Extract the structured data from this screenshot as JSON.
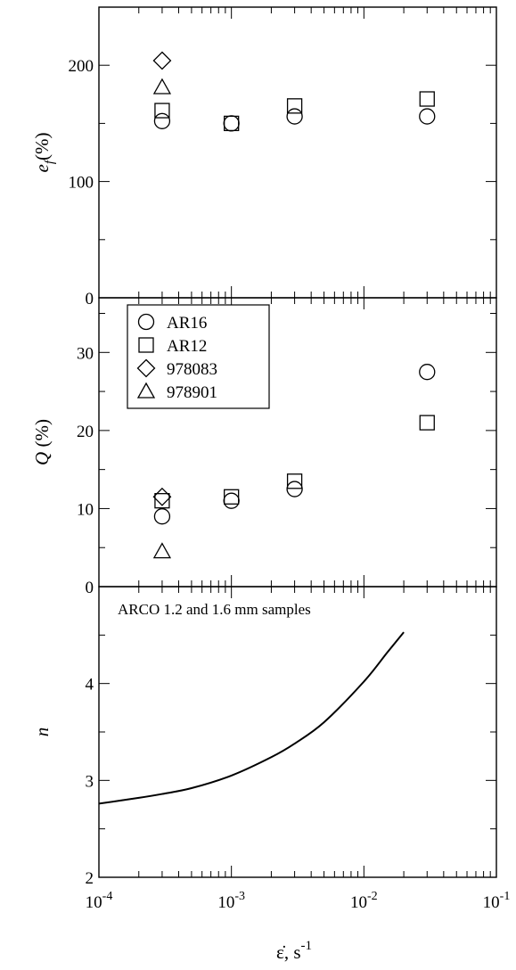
{
  "chart_data": [
    {
      "type": "scatter",
      "xscale": "log",
      "xlim": [
        0.0001,
        0.1
      ],
      "ylim": [
        0,
        250
      ],
      "ylabel_main": "e",
      "ylabel_sub": "f",
      "ylabel_rest": "(%)",
      "yticks": [
        0,
        100,
        200
      ],
      "ytick_labels": [
        "0",
        "100",
        "200"
      ],
      "series": [
        {
          "marker": "circle",
          "x": [
            0.0003,
            0.001,
            0.003,
            0.03
          ],
          "y": [
            152,
            150,
            156,
            156
          ]
        },
        {
          "marker": "square",
          "x": [
            0.0003,
            0.001,
            0.003,
            0.03
          ],
          "y": [
            161,
            150,
            165,
            171
          ]
        },
        {
          "marker": "diamond",
          "x": [
            0.0003
          ],
          "y": [
            204
          ]
        },
        {
          "marker": "triangle",
          "x": [
            0.0003
          ],
          "y": [
            181
          ]
        }
      ]
    },
    {
      "type": "scatter",
      "xscale": "log",
      "xlim": [
        0.0001,
        0.1
      ],
      "ylim": [
        0,
        37
      ],
      "ylabel": "Q (%)",
      "yticks": [
        0,
        10,
        20,
        30
      ],
      "ytick_labels": [
        "0",
        "10",
        "20",
        "30"
      ],
      "legend_position": "top-left",
      "series": [
        {
          "name": "AR16",
          "marker": "circle",
          "x": [
            0.0003,
            0.001,
            0.003,
            0.03
          ],
          "y": [
            9,
            11,
            12.5,
            27.5
          ]
        },
        {
          "name": "AR12",
          "marker": "square",
          "x": [
            0.0003,
            0.001,
            0.003,
            0.03
          ],
          "y": [
            11,
            11.5,
            13.5,
            21
          ]
        },
        {
          "name": "978083",
          "marker": "diamond",
          "x": [
            0.0003
          ],
          "y": [
            11.5
          ]
        },
        {
          "name": "978901",
          "marker": "triangle",
          "x": [
            0.0003
          ],
          "y": [
            4.5
          ]
        }
      ]
    },
    {
      "type": "line",
      "xscale": "log",
      "xlim": [
        0.0001,
        0.1
      ],
      "ylim": [
        2,
        5
      ],
      "ylabel": "n",
      "yticks": [
        2,
        3,
        4
      ],
      "ytick_labels": [
        "2",
        "3",
        "4"
      ],
      "annotation": "ARCO 1.2 and 1.6 mm samples",
      "x": [
        0.0001,
        0.0002,
        0.0003,
        0.0005,
        0.001,
        0.002,
        0.003,
        0.005,
        0.01,
        0.015,
        0.02
      ],
      "y": [
        2.76,
        2.82,
        2.86,
        2.92,
        3.05,
        3.24,
        3.38,
        3.6,
        4.02,
        4.32,
        4.53
      ]
    }
  ],
  "xaxis": {
    "label_main": "ε̇, s",
    "label_sup": "-1",
    "tick_labels": [
      {
        "base": "10",
        "exp": "-4"
      },
      {
        "base": "10",
        "exp": "-3"
      },
      {
        "base": "10",
        "exp": "-2"
      },
      {
        "base": "10",
        "exp": "-1"
      }
    ]
  }
}
